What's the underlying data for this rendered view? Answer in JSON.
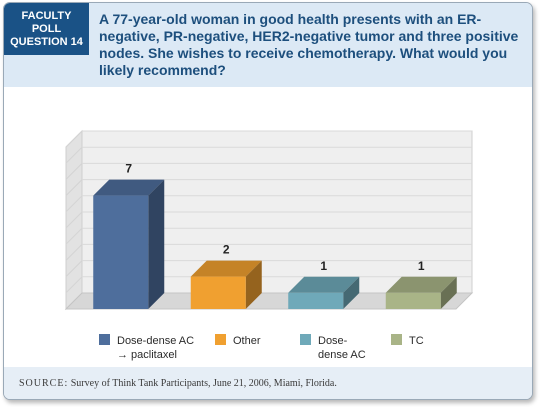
{
  "header": {
    "poll_tag": [
      "FACULTY",
      "POLL",
      "QUESTION 14"
    ],
    "question": "A 77-year-old woman in good health presents with an ER-negative, PR-negative, HER2-negative tumor and three positive nodes. She wishes to receive chemotherapy. What would you likely recommend?"
  },
  "chart_data": {
    "type": "bar",
    "categories": [
      "Dose-dense AC → paclitaxel",
      "Other",
      "Dose-dense AC",
      "TC"
    ],
    "values": [
      7,
      2,
      1,
      1
    ],
    "ylim": [
      0,
      10
    ],
    "grid": true,
    "legend_position": "bottom",
    "colors": [
      "#4e6e9c",
      "#f0a030",
      "#6fa9b9",
      "#a9b487"
    ],
    "legend": [
      {
        "lines": [
          "Dose-dense AC",
          "→ paclitaxel"
        ]
      },
      {
        "lines": [
          "Other"
        ]
      },
      {
        "lines": [
          "Dose-",
          "dense AC"
        ]
      },
      {
        "lines": [
          "TC"
        ]
      }
    ]
  },
  "source": {
    "label": "SOURCE:",
    "text": "Survey of Think Tank Participants, June 21, 2006, Miami, Florida."
  }
}
